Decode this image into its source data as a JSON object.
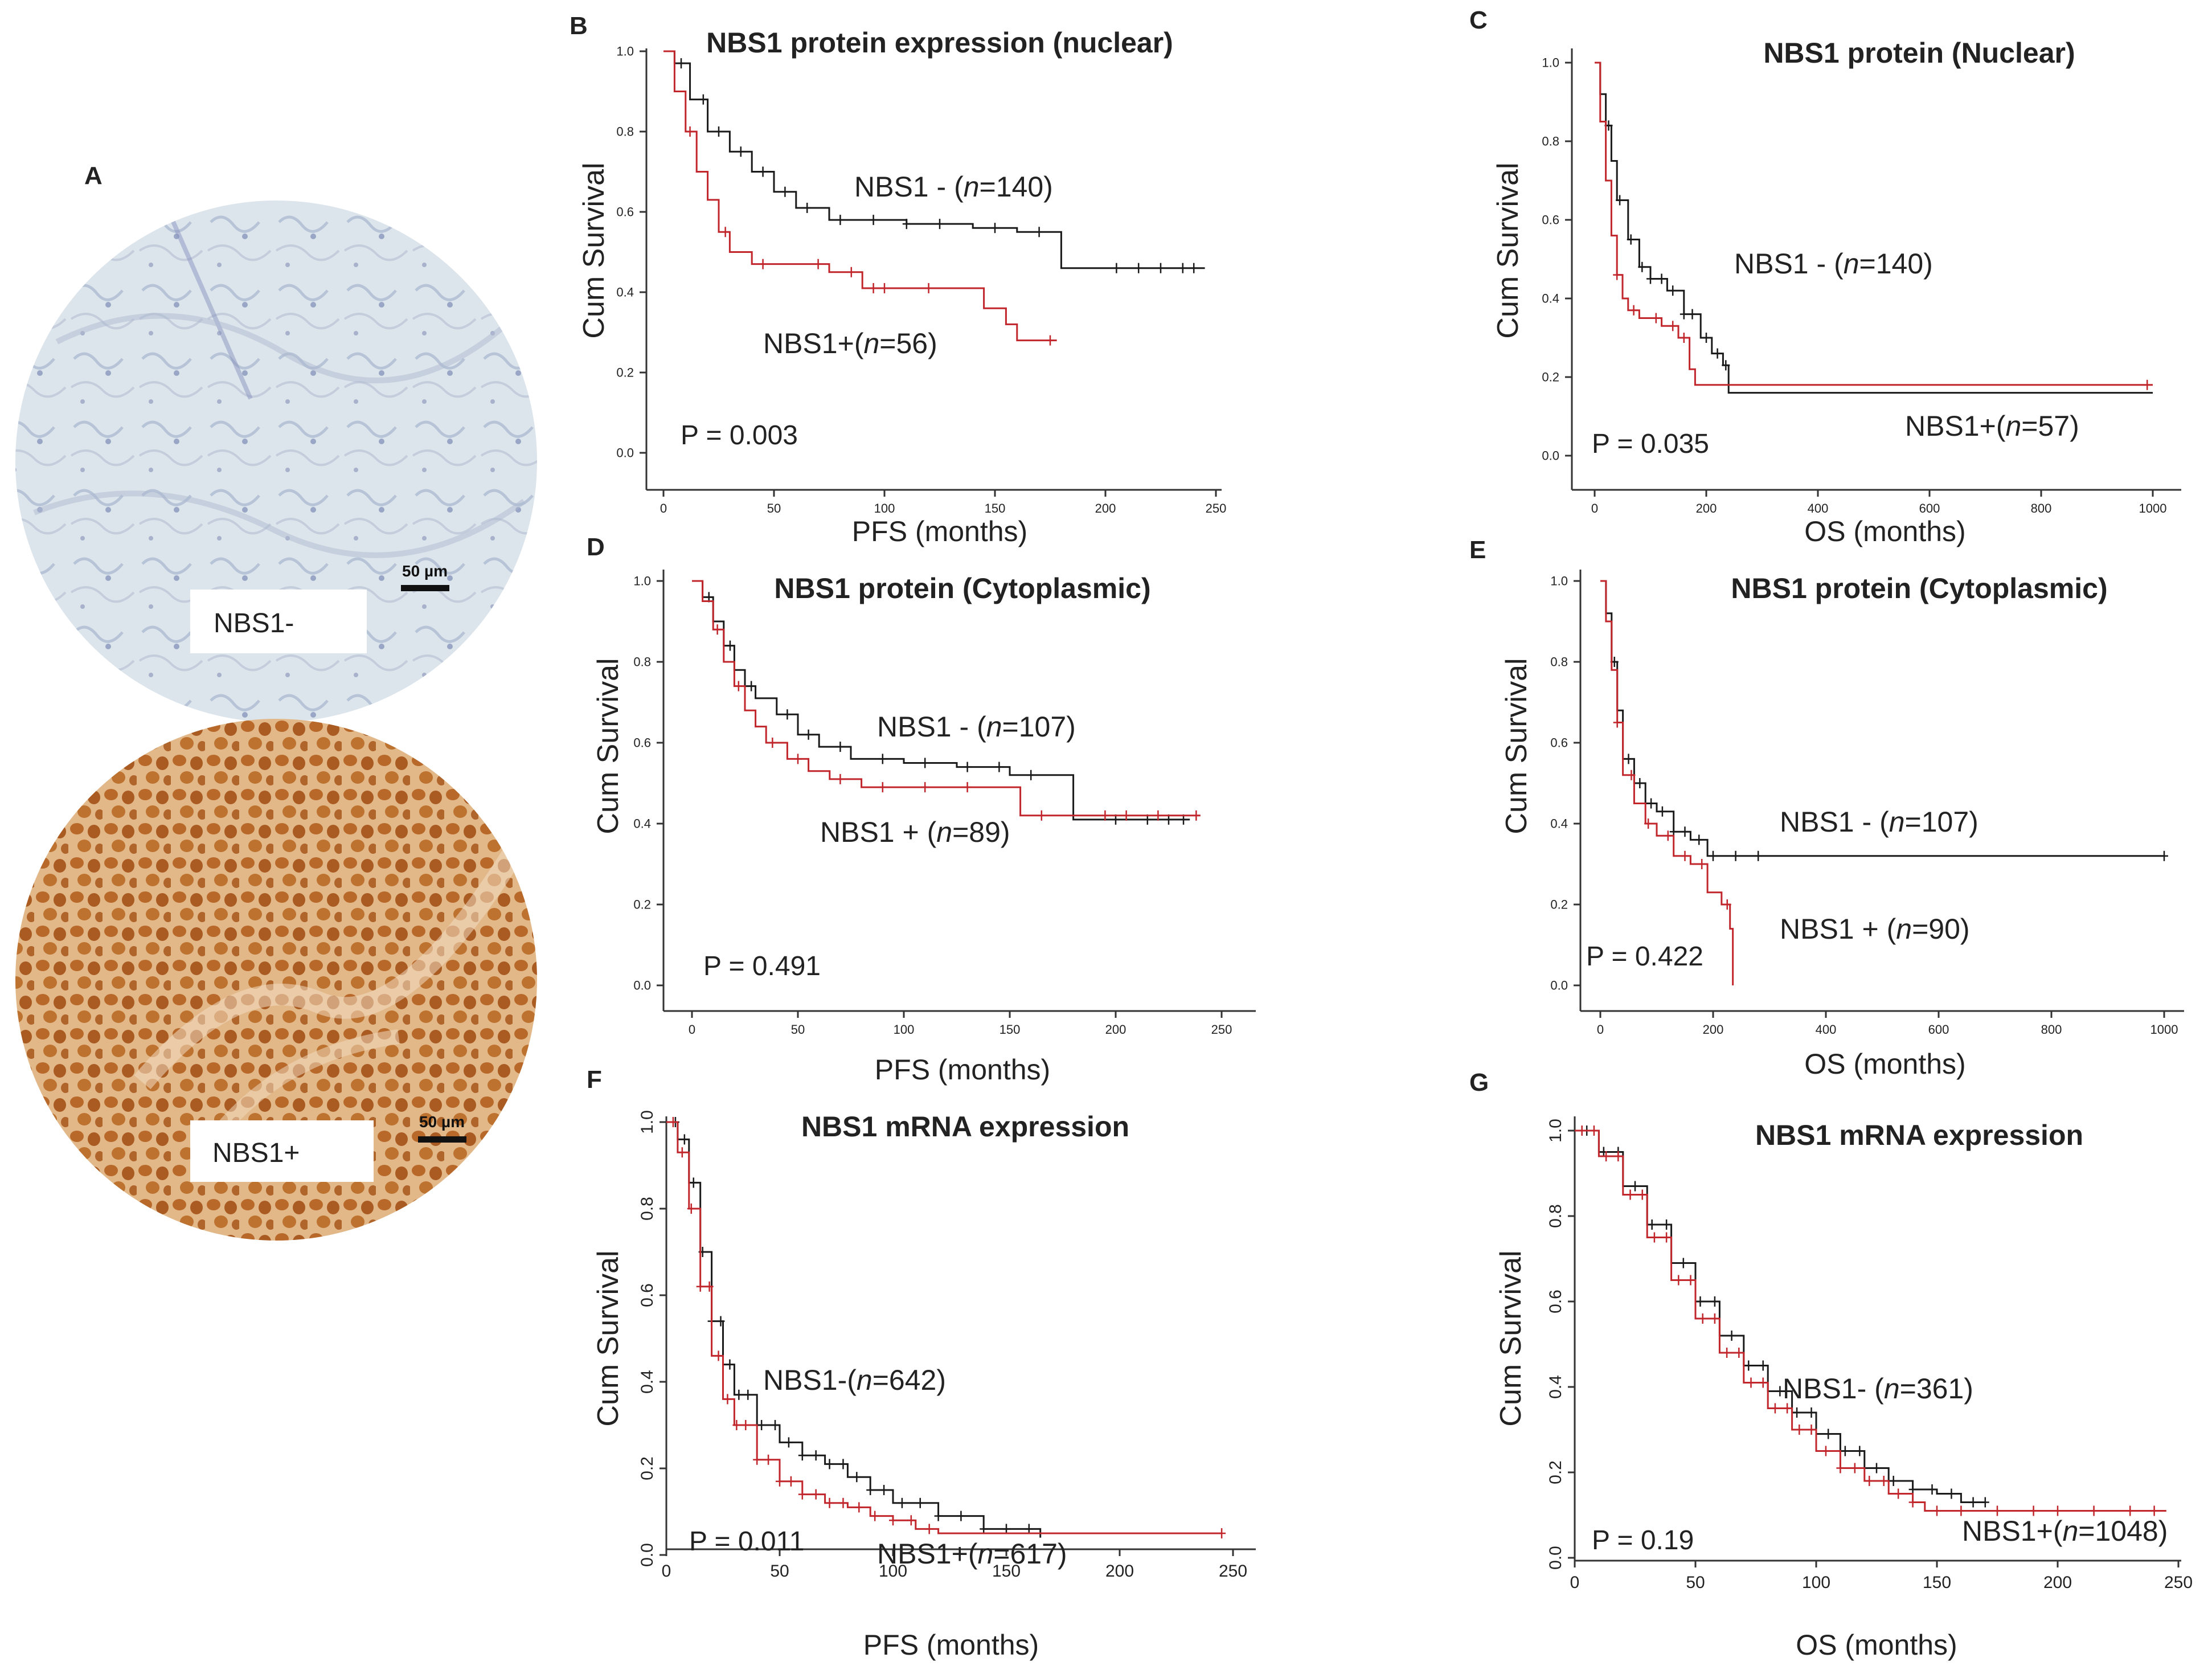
{
  "figure": {
    "panel_a": {
      "letter": "A",
      "core_negative": {
        "label": "NBS1-",
        "scale_bar": "50 µm"
      },
      "core_positive": {
        "label": "NBS1+",
        "scale_bar": "50 µm"
      }
    }
  },
  "colors": {
    "negative_curve": "#1a1a1a",
    "positive_curve": "#c0262b",
    "axis": "#333333",
    "core_neg_bg": "#dfe6ec",
    "core_pos_bg": "#c77b32"
  },
  "chart_data": [
    {
      "panel": "B",
      "type": "line",
      "title": "NBS1 protein expression (nuclear)",
      "xlabel": "PFS (months)",
      "ylabel": "Cum Survival",
      "xlim": [
        0,
        250
      ],
      "ylim": [
        0,
        1.0
      ],
      "xticks": [
        0,
        50,
        100,
        150,
        200,
        250
      ],
      "yticks": [
        0.0,
        0.2,
        0.4,
        0.6,
        0.8,
        1.0
      ],
      "tick_decimals": 1,
      "pvalue": "P = 0.003",
      "series": [
        {
          "name": "NBS1 -",
          "n": "140",
          "role": "negative",
          "x": [
            0,
            5,
            12,
            20,
            30,
            40,
            50,
            60,
            75,
            90,
            110,
            140,
            160,
            180,
            245
          ],
          "y": [
            1.0,
            0.97,
            0.88,
            0.8,
            0.75,
            0.7,
            0.65,
            0.61,
            0.58,
            0.58,
            0.57,
            0.56,
            0.55,
            0.46,
            0.46
          ],
          "censor_x": [
            8,
            18,
            25,
            35,
            45,
            55,
            65,
            80,
            95,
            110,
            125,
            150,
            170,
            205,
            215,
            225,
            235,
            240
          ]
        },
        {
          "name": "NBS1+",
          "n": "56",
          "role": "positive",
          "x": [
            0,
            5,
            10,
            15,
            20,
            25,
            30,
            40,
            55,
            75,
            90,
            110,
            135,
            145,
            155,
            160,
            178
          ],
          "y": [
            1.0,
            0.9,
            0.8,
            0.7,
            0.63,
            0.55,
            0.5,
            0.47,
            0.47,
            0.45,
            0.41,
            0.41,
            0.41,
            0.36,
            0.32,
            0.28,
            0.28
          ],
          "censor_x": [
            12,
            28,
            45,
            70,
            85,
            95,
            100,
            120,
            175
          ]
        }
      ]
    },
    {
      "panel": "C",
      "type": "line",
      "title": "NBS1 protein (Nuclear)",
      "xlabel": "OS  (months)",
      "ylabel": "Cum Survival",
      "xlim": [
        0,
        1000
      ],
      "ylim": [
        0,
        1.0
      ],
      "xticks": [
        0,
        200,
        400,
        600,
        800,
        1000
      ],
      "yticks": [
        0.0,
        0.2,
        0.4,
        0.6,
        0.8,
        1.0
      ],
      "tick_decimals": 1,
      "pvalue": "P = 0.035",
      "series": [
        {
          "name": "NBS1 -",
          "n": "140",
          "role": "negative",
          "x": [
            0,
            10,
            20,
            30,
            40,
            60,
            80,
            100,
            130,
            160,
            190,
            210,
            230,
            240,
            1000
          ],
          "y": [
            1.0,
            0.92,
            0.84,
            0.75,
            0.65,
            0.55,
            0.48,
            0.45,
            0.42,
            0.36,
            0.3,
            0.26,
            0.23,
            0.16,
            0.16
          ],
          "censor_x": [
            25,
            45,
            65,
            85,
            100,
            120,
            140,
            160,
            175,
            200,
            220,
            235
          ]
        },
        {
          "name": "NBS1+",
          "n": "57",
          "role": "positive",
          "x": [
            0,
            10,
            20,
            30,
            40,
            50,
            60,
            80,
            100,
            120,
            150,
            170,
            180,
            1000
          ],
          "y": [
            1.0,
            0.85,
            0.7,
            0.56,
            0.46,
            0.4,
            0.37,
            0.35,
            0.35,
            0.33,
            0.3,
            0.22,
            0.18,
            0.18
          ],
          "censor_x": [
            40,
            70,
            110,
            140,
            160,
            990
          ]
        }
      ]
    },
    {
      "panel": "D",
      "type": "line",
      "title": "NBS1 protein (Cytoplasmic)",
      "xlabel": "PFS (months)",
      "ylabel": "Cum Survival",
      "xlim": [
        0,
        250
      ],
      "ylim": [
        0,
        1.0
      ],
      "xticks": [
        0,
        50,
        100,
        150,
        200,
        250
      ],
      "yticks": [
        0.0,
        0.2,
        0.4,
        0.6,
        0.8,
        1.0
      ],
      "tick_decimals": 1,
      "pvalue": "P = 0.491",
      "series": [
        {
          "name": "NBS1 -",
          "n": "107",
          "role": "negative",
          "x": [
            0,
            5,
            10,
            15,
            20,
            25,
            30,
            40,
            50,
            60,
            75,
            100,
            125,
            150,
            180,
            235
          ],
          "y": [
            1.0,
            0.96,
            0.9,
            0.84,
            0.78,
            0.74,
            0.71,
            0.67,
            0.62,
            0.59,
            0.56,
            0.55,
            0.54,
            0.52,
            0.41,
            0.41
          ],
          "censor_x": [
            8,
            18,
            28,
            45,
            55,
            70,
            90,
            110,
            130,
            145,
            160,
            200,
            215,
            225,
            232
          ]
        },
        {
          "name": "NBS1 +",
          "n": "89",
          "role": "positive",
          "x": [
            0,
            5,
            10,
            15,
            20,
            25,
            30,
            35,
            45,
            55,
            65,
            80,
            100,
            140,
            155,
            180,
            240
          ],
          "y": [
            1.0,
            0.95,
            0.88,
            0.8,
            0.74,
            0.68,
            0.64,
            0.6,
            0.56,
            0.53,
            0.51,
            0.49,
            0.49,
            0.49,
            0.42,
            0.42,
            0.42
          ],
          "censor_x": [
            12,
            22,
            38,
            50,
            70,
            90,
            110,
            130,
            165,
            195,
            205,
            220,
            238
          ]
        }
      ]
    },
    {
      "panel": "E",
      "type": "line",
      "title": "NBS1 protein (Cytoplasmic)",
      "xlabel": "OS  (months)",
      "ylabel": "Cum Survival",
      "xlim": [
        0,
        1000
      ],
      "ylim": [
        0,
        1.0
      ],
      "xticks": [
        0,
        200,
        400,
        600,
        800,
        1000
      ],
      "yticks": [
        0.0,
        0.2,
        0.4,
        0.6,
        0.8,
        1.0
      ],
      "tick_decimals": 1,
      "pvalue": "P = 0.422",
      "series": [
        {
          "name": "NBS1 -",
          "n": "107",
          "role": "negative",
          "x": [
            0,
            10,
            20,
            30,
            40,
            60,
            80,
            100,
            130,
            160,
            190,
            1000
          ],
          "y": [
            1.0,
            0.92,
            0.8,
            0.68,
            0.56,
            0.5,
            0.45,
            0.43,
            0.38,
            0.36,
            0.32,
            0.32
          ],
          "censor_x": [
            25,
            50,
            70,
            90,
            110,
            130,
            150,
            175,
            200,
            240,
            280,
            1000
          ]
        },
        {
          "name": "NBS1 +",
          "n": "90",
          "role": "positive",
          "x": [
            0,
            10,
            20,
            30,
            40,
            60,
            80,
            100,
            130,
            160,
            190,
            215,
            230,
            235
          ],
          "y": [
            1.0,
            0.9,
            0.78,
            0.65,
            0.52,
            0.45,
            0.4,
            0.37,
            0.32,
            0.3,
            0.23,
            0.2,
            0.14,
            0.0
          ],
          "censor_x": [
            30,
            55,
            85,
            120,
            150,
            180,
            225
          ]
        }
      ]
    },
    {
      "panel": "F",
      "type": "line",
      "title": "NBS1 mRNA expression",
      "xlabel": "PFS (months)",
      "ylabel": "Cum Survival",
      "xlim": [
        0,
        250
      ],
      "ylim": [
        0,
        1.0
      ],
      "xticks": [
        0,
        50,
        100,
        150,
        200,
        250
      ],
      "yticks": [
        0.0,
        0.2,
        0.4,
        0.6,
        0.8,
        1.0
      ],
      "tick_decimals": 1,
      "pvalue": "P = 0.011",
      "series": [
        {
          "name": "NBS1-",
          "n": "642",
          "role": "negative",
          "x": [
            0,
            5,
            10,
            15,
            20,
            25,
            30,
            40,
            50,
            60,
            70,
            80,
            90,
            100,
            120,
            140,
            165
          ],
          "y": [
            1.0,
            0.96,
            0.86,
            0.7,
            0.54,
            0.44,
            0.37,
            0.3,
            0.26,
            0.23,
            0.21,
            0.18,
            0.15,
            0.12,
            0.09,
            0.06,
            0.04
          ],
          "censor_x": [
            4,
            8,
            12,
            16,
            20,
            24,
            28,
            32,
            36,
            42,
            48,
            54,
            60,
            66,
            72,
            78,
            84,
            90,
            96,
            104,
            112,
            120,
            130,
            140,
            150,
            160
          ]
        },
        {
          "name": "NBS1+",
          "n": "617",
          "role": "positive",
          "x": [
            0,
            5,
            10,
            15,
            20,
            25,
            30,
            40,
            50,
            60,
            70,
            80,
            90,
            100,
            110,
            120,
            245
          ],
          "y": [
            1.0,
            0.93,
            0.8,
            0.62,
            0.46,
            0.36,
            0.3,
            0.22,
            0.17,
            0.14,
            0.12,
            0.11,
            0.09,
            0.08,
            0.06,
            0.05,
            0.05
          ],
          "censor_x": [
            3,
            7,
            11,
            15,
            19,
            23,
            27,
            31,
            35,
            40,
            45,
            50,
            55,
            60,
            66,
            72,
            78,
            85,
            92,
            100,
            108,
            116,
            245
          ]
        }
      ]
    },
    {
      "panel": "G",
      "type": "line",
      "title": "NBS1 mRNA expression",
      "xlabel": "OS (months)",
      "ylabel": "Cum Survival",
      "xlim": [
        0,
        250
      ],
      "ylim": [
        0,
        1.0
      ],
      "xticks": [
        0,
        50,
        100,
        150,
        200,
        250
      ],
      "yticks": [
        0.0,
        0.2,
        0.4,
        0.6,
        0.8,
        1.0
      ],
      "tick_decimals": 1,
      "pvalue": "P = 0.19",
      "series": [
        {
          "name": "NBS1- ",
          "n": "361",
          "role": "negative",
          "x": [
            0,
            10,
            20,
            30,
            40,
            50,
            60,
            70,
            80,
            90,
            100,
            110,
            120,
            130,
            140,
            150,
            160,
            170
          ],
          "y": [
            1.0,
            0.95,
            0.87,
            0.78,
            0.69,
            0.6,
            0.52,
            0.45,
            0.39,
            0.34,
            0.29,
            0.25,
            0.21,
            0.18,
            0.16,
            0.15,
            0.13,
            0.13
          ],
          "censor_x": [
            5,
            12,
            18,
            25,
            32,
            38,
            45,
            52,
            58,
            65,
            72,
            78,
            85,
            92,
            98,
            105,
            112,
            118,
            125,
            132,
            140,
            148,
            156,
            165,
            170
          ]
        },
        {
          "name": "NBS1+",
          "n": "1048",
          "role": "positive",
          "x": [
            0,
            10,
            20,
            30,
            40,
            50,
            60,
            70,
            80,
            90,
            100,
            110,
            120,
            130,
            140,
            145,
            245
          ],
          "y": [
            1.0,
            0.94,
            0.85,
            0.75,
            0.65,
            0.56,
            0.48,
            0.41,
            0.35,
            0.3,
            0.25,
            0.21,
            0.18,
            0.15,
            0.13,
            0.11,
            0.11
          ],
          "censor_x": [
            3,
            8,
            13,
            18,
            23,
            28,
            33,
            38,
            43,
            48,
            53,
            58,
            63,
            68,
            73,
            78,
            83,
            88,
            93,
            98,
            104,
            110,
            116,
            122,
            128,
            134,
            140,
            150,
            160,
            175,
            190,
            200,
            215,
            230,
            240
          ]
        }
      ]
    }
  ]
}
